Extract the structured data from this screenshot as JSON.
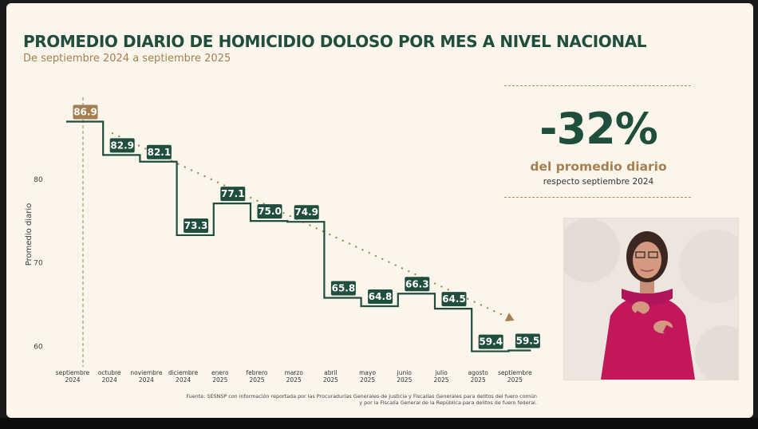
{
  "title": "PROMEDIO DIARIO DE HOMICIDIO DOLOSO POR MES A NIVEL NACIONAL",
  "subtitle": "De septiembre 2024 a septiembre 2025",
  "kpi": {
    "value": "-32%",
    "label": "del promedio diario",
    "sublabel": "respecto septiembre 2024"
  },
  "source": {
    "line1": "Fuente: SESNSP con información reportada por las Procuradurías Generales de Justicia y Fiscalías Generales para delitos del fuero común",
    "line2": "y por la Fiscalía General de la República para delitos de fuero federal."
  },
  "colors": {
    "green": "#1f4e3c",
    "gold": "#a57f4e",
    "background": "#fbf5ec"
  },
  "chart_data": {
    "type": "line",
    "step": true,
    "ylabel": "Promedio diario",
    "ylim": [
      58.5,
      90
    ],
    "yticks": [
      "60",
      "70",
      "80"
    ],
    "categories": [
      [
        "septiembre",
        "2024"
      ],
      [
        "octubre",
        "2024"
      ],
      [
        "noviembre",
        "2024"
      ],
      [
        "diciembre",
        "2024"
      ],
      [
        "enero",
        "2025"
      ],
      [
        "febrero",
        "2025"
      ],
      [
        "marzo",
        "2025"
      ],
      [
        "abril",
        "2025"
      ],
      [
        "mayo",
        "2025"
      ],
      [
        "junio",
        "2025"
      ],
      [
        "julio",
        "2025"
      ],
      [
        "agosto",
        "2025"
      ],
      [
        "septiembre",
        "2025"
      ]
    ],
    "values": [
      86.9,
      82.9,
      82.1,
      73.3,
      77.1,
      75.0,
      74.9,
      65.8,
      64.8,
      66.3,
      64.5,
      59.4,
      59.5
    ],
    "labels": [
      "86.9",
      "82.9",
      "82.1",
      "73.3",
      "77.1",
      "75.0",
      "74.9",
      "65.8",
      "64.8",
      "66.3",
      "64.5",
      "59.4",
      "59.5"
    ],
    "trend": {
      "from": 85.5,
      "to": 63.5,
      "style": "dotted",
      "arrow": "down"
    },
    "reference_line": {
      "x_index": 0,
      "style": "dashed"
    }
  }
}
